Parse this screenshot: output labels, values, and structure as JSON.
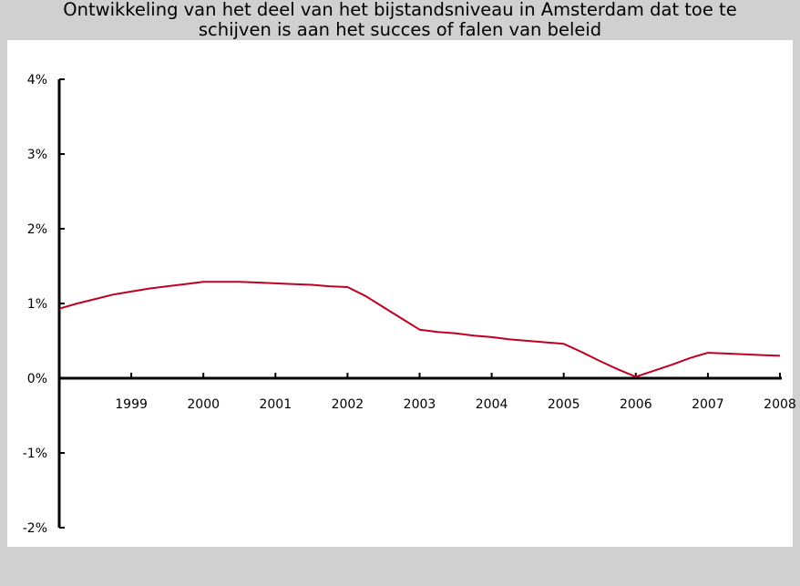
{
  "chart_data": {
    "type": "line",
    "title_lines": [
      "Ontwikkeling van het deel van het bijstandsniveau in Amsterdam dat toe te",
      "schijven is aan het succes of falen van beleid"
    ],
    "xlabel": "",
    "ylabel": "",
    "x_tick_labels": [
      "1999",
      "2000",
      "2001",
      "2002",
      "2003",
      "2004",
      "2005",
      "2006",
      "2007",
      "2008"
    ],
    "y_tick_labels": [
      "4%",
      "3%",
      "2%",
      "1%",
      "0%",
      "-1%",
      "-2%"
    ],
    "xlim": [
      1998,
      2008
    ],
    "ylim": [
      -2,
      4
    ],
    "grid": false,
    "legend": "none",
    "line_color": "#c00020",
    "series": [
      {
        "values": [
          [
            1998.0,
            0.93
          ],
          [
            1998.25,
            1.0
          ],
          [
            1998.5,
            1.06
          ],
          [
            1998.75,
            1.12
          ],
          [
            1999.0,
            1.16
          ],
          [
            1999.25,
            1.2
          ],
          [
            1999.5,
            1.23
          ],
          [
            1999.75,
            1.26
          ],
          [
            2000.0,
            1.29
          ],
          [
            2000.25,
            1.29
          ],
          [
            2000.5,
            1.29
          ],
          [
            2000.75,
            1.28
          ],
          [
            2001.0,
            1.27
          ],
          [
            2001.25,
            1.26
          ],
          [
            2001.5,
            1.25
          ],
          [
            2001.75,
            1.23
          ],
          [
            2002.0,
            1.22
          ],
          [
            2002.25,
            1.1
          ],
          [
            2002.5,
            0.95
          ],
          [
            2002.75,
            0.8
          ],
          [
            2003.0,
            0.65
          ],
          [
            2003.25,
            0.62
          ],
          [
            2003.5,
            0.6
          ],
          [
            2003.75,
            0.57
          ],
          [
            2004.0,
            0.55
          ],
          [
            2004.25,
            0.52
          ],
          [
            2004.5,
            0.5
          ],
          [
            2004.75,
            0.48
          ],
          [
            2005.0,
            0.46
          ],
          [
            2005.25,
            0.35
          ],
          [
            2005.5,
            0.23
          ],
          [
            2005.75,
            0.12
          ],
          [
            2006.0,
            0.02
          ],
          [
            2006.25,
            0.1
          ],
          [
            2006.5,
            0.18
          ],
          [
            2006.75,
            0.27
          ],
          [
            2007.0,
            0.34
          ],
          [
            2007.25,
            0.33
          ],
          [
            2007.5,
            0.32
          ],
          [
            2007.75,
            0.31
          ],
          [
            2008.0,
            0.3
          ]
        ]
      }
    ]
  }
}
